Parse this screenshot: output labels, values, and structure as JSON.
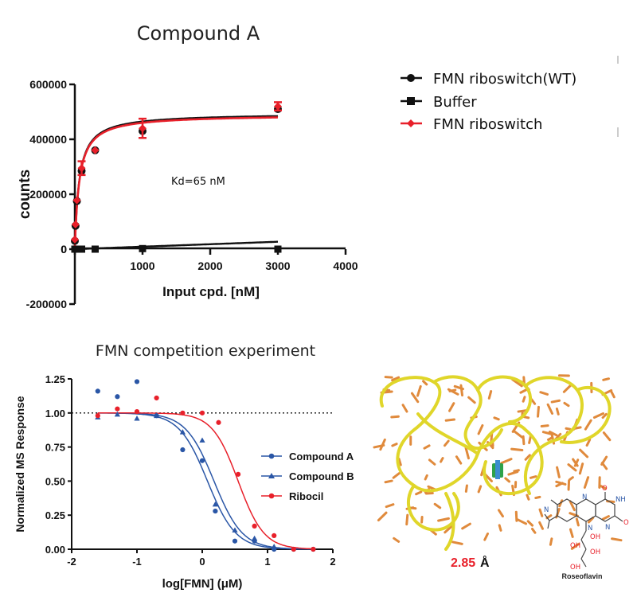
{
  "chart_data": [
    {
      "type": "scatter",
      "title": "Compound A",
      "xlabel": "Input cpd. [nM]",
      "ylabel": "counts",
      "xlim": [
        0,
        4000
      ],
      "ylim": [
        -200000,
        600000
      ],
      "xticks": [
        "0",
        "1000",
        "2000",
        "3000",
        "4000"
      ],
      "yticks": [
        "-200000",
        "0",
        "200000",
        "400000",
        "600000"
      ],
      "annotation": "Kd=65 nM",
      "legend": "right",
      "series": [
        {
          "name": "FMN riboswitch(WT)",
          "color": "#111111",
          "marker": "circle",
          "x": [
            0,
            10,
            30,
            100,
            300,
            1000,
            3000
          ],
          "y": [
            30000,
            85000,
            175000,
            285000,
            360000,
            430000,
            510000
          ],
          "fit": {
            "bmax": 495000,
            "kd": 65
          }
        },
        {
          "name": "Buffer",
          "color": "#111111",
          "marker": "square",
          "x": [
            0,
            10,
            30,
            100,
            300,
            1000,
            3000
          ],
          "y": [
            0,
            0,
            0,
            0,
            0,
            2000,
            0
          ],
          "fit": {
            "slope": 9
          }
        },
        {
          "name": "FMN riboswitch",
          "color": "#e8202a",
          "marker": "diamond",
          "x": [
            0,
            10,
            30,
            100,
            300,
            1000,
            3000
          ],
          "y": [
            35000,
            90000,
            178000,
            295000,
            360000,
            440000,
            520000
          ],
          "err": [
            0,
            0,
            0,
            25000,
            0,
            35000,
            15000
          ],
          "fit": {
            "bmax": 490000,
            "kd": 65
          }
        }
      ]
    },
    {
      "type": "scatter",
      "title": "FMN competition experiment",
      "xlabel": "log[FMN] (μM)",
      "ylabel": "Normalized MS Response",
      "xlim": [
        -2,
        2
      ],
      "ylim": [
        0,
        1.25
      ],
      "xticks": [
        "-2",
        "-1",
        "0",
        "1",
        "2"
      ],
      "yticks": [
        "0.00",
        "0.25",
        "0.50",
        "0.75",
        "1.00",
        "1.25"
      ],
      "reference_line": 1.0,
      "legend": "right",
      "series": [
        {
          "name": "Compound A",
          "color": "#2a56a6",
          "marker": "circle",
          "x": [
            -1.6,
            -1.3,
            -1.0,
            -0.7,
            -0.3,
            0.0,
            0.2,
            0.5,
            0.8,
            1.1,
            1.4,
            1.7
          ],
          "y": [
            1.16,
            1.12,
            1.23,
            0.98,
            0.73,
            0.65,
            0.28,
            0.06,
            0.06,
            0.0,
            0.0,
            0.0
          ],
          "fit": {
            "logec50": 0.08,
            "hill": 2.0
          }
        },
        {
          "name": "Compound B",
          "color": "#2a56a6",
          "marker": "triangle",
          "x": [
            -1.6,
            -1.3,
            -1.0,
            -0.7,
            -0.3,
            0.0,
            0.2,
            0.5,
            0.8,
            1.1
          ],
          "y": [
            0.97,
            0.99,
            0.96,
            0.98,
            0.86,
            0.8,
            0.33,
            0.14,
            0.08,
            0.02
          ],
          "fit": {
            "logec50": 0.18,
            "hill": 2.0
          }
        },
        {
          "name": "Ribocil",
          "color": "#e8202a",
          "marker": "circle",
          "x": [
            -1.6,
            -1.3,
            -1.0,
            -0.7,
            -0.3,
            0.0,
            0.25,
            0.55,
            0.8,
            1.1,
            1.4,
            1.7
          ],
          "y": [
            0.98,
            1.03,
            1.01,
            1.11,
            1.0,
            1.0,
            0.93,
            0.55,
            0.17,
            0.1,
            0.0,
            0.0
          ],
          "fit": {
            "logec50": 0.55,
            "hill": 2.2
          }
        }
      ]
    }
  ],
  "structure": {
    "distance_value": "2.85",
    "distance_unit": "Å",
    "ligand_label": "Roseoflavin",
    "ligand_atoms": [
      "N",
      "N",
      "NH",
      "N",
      "N",
      "O",
      "O",
      "OH",
      "OH",
      "OH",
      "OH"
    ]
  },
  "colors": {
    "black": "#111111",
    "red": "#e8202a",
    "blue": "#2a56a6",
    "rna_backbone": "#e0d62a",
    "rna_bases": "#e08a3c",
    "ligand": "#2fa24a"
  }
}
